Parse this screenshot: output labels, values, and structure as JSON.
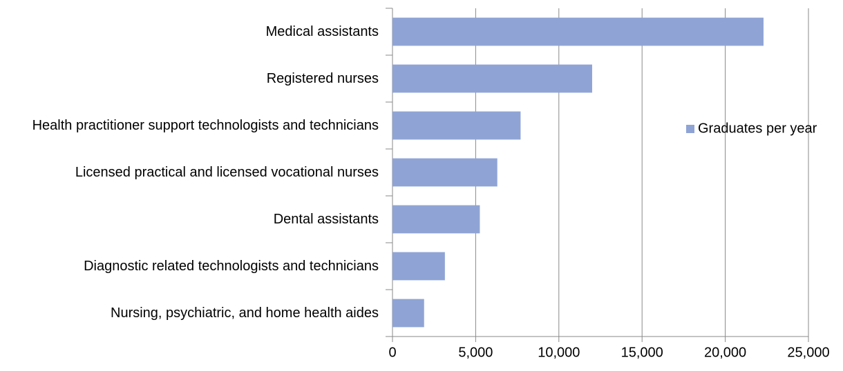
{
  "chart_data": {
    "type": "barh",
    "categories": [
      "Medical assistants",
      "Registered nurses",
      "Health practitioner support technologists and technicians",
      "Licensed practical and licensed vocational nurses",
      "Dental assistants",
      "Diagnostic related technologists and technicians",
      "Nursing, psychiatric, and home health aides"
    ],
    "series": [
      {
        "name": "Graduates per year",
        "color": "#8fa4d5",
        "values": [
          22300,
          12000,
          7700,
          6300,
          5250,
          3150,
          1900
        ]
      }
    ],
    "xlim": [
      0,
      25000
    ],
    "xticks": [
      0,
      {
        "value": 5000,
        "label": "5,000"
      },
      {
        "value": 10000,
        "label": "10,000"
      },
      {
        "value": 15000,
        "label": "15,000"
      },
      {
        "value": 20000,
        "label": "20,000"
      },
      {
        "value": 25000,
        "label": "25,000"
      }
    ],
    "grid": true,
    "legend": "right"
  }
}
